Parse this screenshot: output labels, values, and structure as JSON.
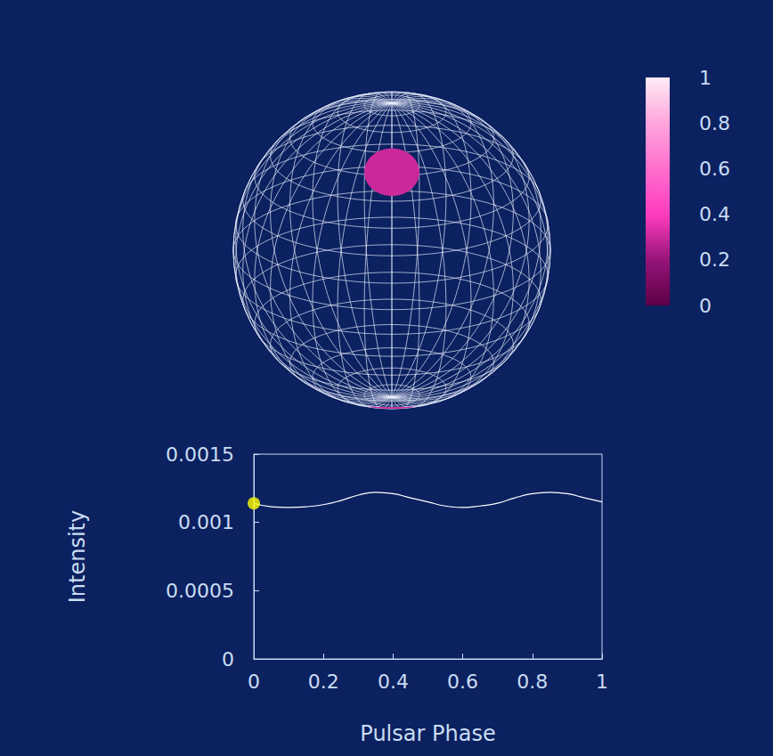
{
  "chart_data": [
    {
      "type": "line",
      "xlabel": "Pulsar Phase",
      "ylabel": "Intensity",
      "x": [
        0,
        0.05,
        0.1,
        0.15,
        0.2,
        0.25,
        0.3,
        0.35,
        0.4,
        0.45,
        0.5,
        0.55,
        0.6,
        0.65,
        0.7,
        0.75,
        0.8,
        0.85,
        0.9,
        0.95,
        1
      ],
      "xlim": [
        0,
        1
      ],
      "xticks": [
        0,
        0.2,
        0.4,
        0.6,
        0.8,
        1
      ],
      "ylim": [
        0,
        0.0015
      ],
      "yticks": [
        0,
        0.0005,
        0.001,
        0.0015
      ],
      "grid": false,
      "series": [
        {
          "type": "line",
          "color": "#ffffff",
          "values": [
            0.00114,
            0.001115,
            0.00111,
            0.001115,
            0.00113,
            0.00116,
            0.0012,
            0.00122,
            0.00121,
            0.00118,
            0.00115,
            0.00112,
            0.00111,
            0.00112,
            0.00114,
            0.00118,
            0.00121,
            0.00122,
            0.00121,
            0.00118,
            0.00115
          ]
        },
        {
          "type": "scatter",
          "marker": "circle",
          "color": "#ffff00",
          "x": [
            0
          ],
          "values": [
            0.00114
          ]
        }
      ]
    },
    {
      "type": "sphere",
      "colorbar": {
        "range": [
          0,
          1
        ],
        "ticks": [
          0,
          0.2,
          0.4,
          0.6,
          0.8,
          1
        ]
      },
      "spots": [
        {
          "value": 0.3
        },
        {
          "value": 0.3
        }
      ]
    }
  ]
}
